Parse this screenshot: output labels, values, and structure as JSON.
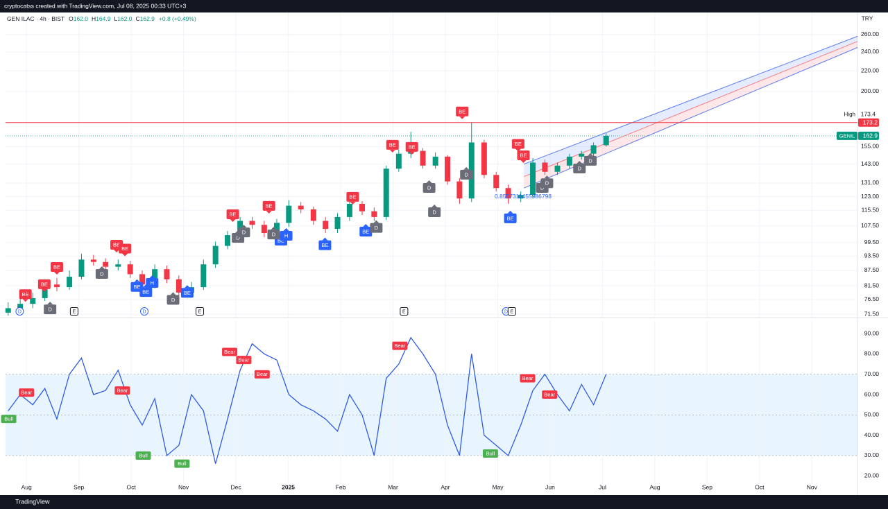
{
  "page": {
    "watermark": "cryptocatss created with TradingView.com, Jul 08, 2025 00:33 UTC+3",
    "brand": "TradingView"
  },
  "header": {
    "symbol": "GEN ILAC · 4h · BIST",
    "ohlc": [
      {
        "key": "O",
        "value": "162.0"
      },
      {
        "key": "H",
        "value": "164.9"
      },
      {
        "key": "L",
        "value": "162.0"
      },
      {
        "key": "C",
        "value": "162.9"
      }
    ],
    "change": "+0.8 (+0.49%)"
  },
  "chart_data": [
    {
      "type": "candlestick",
      "currency": "TRY",
      "log_scale": true,
      "grid": true,
      "x": [
        -0.35,
        -0.12,
        0.12,
        0.35,
        0.58,
        0.82,
        1.05,
        1.28,
        1.51,
        1.75,
        1.98,
        2.21,
        2.45,
        2.68,
        2.91,
        3.15,
        3.38,
        3.61,
        3.84,
        4.08,
        4.31,
        4.54,
        4.78,
        5.01,
        5.24,
        5.48,
        5.71,
        5.94,
        6.17,
        6.41,
        6.64,
        6.87,
        7.11,
        7.34,
        7.57,
        7.81,
        8.04,
        8.27,
        8.5,
        8.74,
        8.97,
        9.2,
        9.44,
        9.67,
        9.9,
        10.14,
        10.37,
        10.6,
        10.83,
        11.07
      ],
      "open": [
        72,
        73.5,
        75,
        77,
        82,
        81,
        85,
        92,
        91,
        89,
        90,
        86,
        82,
        88,
        84,
        79,
        81,
        90,
        98,
        103,
        110,
        108,
        104,
        109,
        118,
        116,
        110,
        106,
        112,
        119,
        115,
        112,
        140,
        150,
        152,
        142,
        148,
        132,
        122,
        158,
        136,
        128,
        122,
        124,
        144,
        138,
        142,
        148,
        150,
        156
      ],
      "high": [
        75.5,
        77,
        79,
        84,
        84.5,
        87.5,
        94.5,
        94,
        92.5,
        92,
        91.5,
        87.5,
        90,
        89.5,
        85.5,
        83,
        92,
        100,
        105,
        112,
        112,
        110,
        111,
        121,
        120,
        117.5,
        112,
        114,
        121,
        120.5,
        117,
        142,
        153,
        166,
        154,
        151,
        149,
        134,
        173.4,
        160,
        138,
        130,
        126,
        147,
        146,
        144,
        150,
        152,
        158,
        164.9
      ],
      "low": [
        71,
        72,
        73.5,
        76,
        79.5,
        80,
        84,
        89.5,
        87.5,
        87.5,
        84.5,
        80.5,
        80.5,
        82.5,
        77.5,
        77.5,
        80,
        88.5,
        96.5,
        101.5,
        106,
        102,
        102,
        107,
        114,
        108,
        104,
        104,
        110,
        113,
        110,
        110.5,
        138,
        147,
        140,
        140,
        130,
        119,
        120,
        134,
        126,
        119,
        120,
        122,
        136,
        136,
        140,
        146,
        148,
        155
      ],
      "close": [
        73.5,
        75,
        77,
        82,
        81,
        85,
        92,
        91,
        89,
        90,
        86,
        82,
        88,
        84,
        79,
        81,
        90,
        98,
        103,
        110,
        108,
        104,
        109,
        118,
        116,
        110,
        106,
        112,
        119,
        115,
        112,
        140,
        150,
        152,
        142,
        148,
        132,
        122,
        158,
        136,
        128,
        122,
        124,
        144,
        138,
        142,
        148,
        150,
        156,
        162.9
      ],
      "up_color": "#089981",
      "down_color": "#f23645",
      "xlim": [
        -0.4,
        15.87
      ],
      "ylim": [
        70.6,
        288
      ],
      "yticks": [
        {
          "value": 71.5,
          "label": "71.50"
        },
        {
          "value": 76.5,
          "label": "76.50"
        },
        {
          "value": 81.5,
          "label": "81.50"
        },
        {
          "value": 87.5,
          "label": "87.50"
        },
        {
          "value": 93.5,
          "label": "93.50"
        },
        {
          "value": 99.5,
          "label": "99.50"
        },
        {
          "value": 107.5,
          "label": "107.50"
        },
        {
          "value": 115.5,
          "label": "115.50"
        },
        {
          "value": 123,
          "label": "123.00"
        },
        {
          "value": 131,
          "label": "131.00"
        },
        {
          "value": 143,
          "label": "143.00"
        },
        {
          "value": 155,
          "label": "155.00"
        },
        {
          "value": 200,
          "label": "200.00"
        },
        {
          "value": 220,
          "label": "220.00"
        },
        {
          "value": 240,
          "label": "240.00"
        },
        {
          "value": 260,
          "label": "260.00"
        }
      ],
      "hline": {
        "value": 173.2,
        "color": "#f23645"
      },
      "high_marker": {
        "label": "High",
        "value": 173.4
      },
      "last": {
        "name": "GENIL",
        "value": 162.9,
        "color": "#089981"
      },
      "channel": {
        "x": [
          9.5,
          15.87
        ],
        "upper": [
          143,
          258
        ],
        "middle": [
          135,
          252
        ],
        "lower": [
          128,
          245
        ]
      },
      "annotation": {
        "text": "0.8557311455986798",
        "x": 8.94,
        "y": 123
      },
      "markers": [
        {
          "label": "BE",
          "kind": "sell",
          "x": -0.02,
          "y": 78.4
        },
        {
          "label": "BE",
          "kind": "sell",
          "x": 0.34,
          "y": 82.1
        },
        {
          "label": "BE",
          "kind": "sell",
          "x": 0.58,
          "y": 88.9
        },
        {
          "label": "BE",
          "kind": "sell",
          "x": 1.72,
          "y": 98.5
        },
        {
          "label": "BE",
          "kind": "sell",
          "x": 1.88,
          "y": 96.8
        },
        {
          "label": "BE",
          "kind": "sell",
          "x": 3.94,
          "y": 113.4
        },
        {
          "label": "BE",
          "kind": "sell",
          "x": 4.63,
          "y": 117.9
        },
        {
          "label": "BE",
          "kind": "sell",
          "x": 6.23,
          "y": 122.9
        },
        {
          "label": "BE",
          "kind": "sell",
          "x": 6.99,
          "y": 156.3
        },
        {
          "label": "BE",
          "kind": "sell",
          "x": 7.36,
          "y": 154.8
        },
        {
          "label": "BE",
          "kind": "sell",
          "x": 8.32,
          "y": 182.3
        },
        {
          "label": "BE",
          "kind": "sell",
          "x": 9.39,
          "y": 157
        },
        {
          "label": "BE",
          "kind": "sell",
          "x": 9.49,
          "y": 148.9
        },
        {
          "label": "BE",
          "kind": "buy",
          "x": 2.11,
          "y": 81.1
        },
        {
          "label": "BE",
          "kind": "buy",
          "x": 2.28,
          "y": 79.2
        },
        {
          "label": "BE",
          "kind": "buy",
          "x": 3.07,
          "y": 78.9
        },
        {
          "label": "BE",
          "kind": "buy",
          "x": 4.86,
          "y": 100.4
        },
        {
          "label": "BE",
          "kind": "buy",
          "x": 5.7,
          "y": 98.3
        },
        {
          "label": "BE",
          "kind": "buy",
          "x": 6.48,
          "y": 104.7
        },
        {
          "label": "BE",
          "kind": "buy",
          "x": 9.24,
          "y": 111.3
        },
        {
          "label": "H",
          "kind": "buy",
          "x": 2.4,
          "y": 82.6
        },
        {
          "label": "H",
          "kind": "buy",
          "x": 4.96,
          "y": 102.7
        },
        {
          "label": "D",
          "kind": "dot",
          "x": 0.45,
          "y": 73.1
        },
        {
          "label": "D",
          "kind": "dot",
          "x": 1.44,
          "y": 86.1
        },
        {
          "label": "D",
          "kind": "dot",
          "x": 2.8,
          "y": 76.4
        },
        {
          "label": "D",
          "kind": "dot",
          "x": 4.04,
          "y": 101.7
        },
        {
          "label": "D",
          "kind": "dot",
          "x": 4.15,
          "y": 104.3
        },
        {
          "label": "D",
          "kind": "dot",
          "x": 4.72,
          "y": 103.3
        },
        {
          "label": "D",
          "kind": "dot",
          "x": 6.68,
          "y": 106.5
        },
        {
          "label": "D",
          "kind": "dot",
          "x": 7.69,
          "y": 128.1
        },
        {
          "label": "D",
          "kind": "dot",
          "x": 7.79,
          "y": 114.5
        },
        {
          "label": "D",
          "kind": "dot",
          "x": 8.4,
          "y": 136.2
        },
        {
          "label": "D",
          "kind": "dot",
          "x": 9.85,
          "y": 128.1
        },
        {
          "label": "D",
          "kind": "dot",
          "x": 9.94,
          "y": 130.9
        },
        {
          "label": "D",
          "kind": "dot",
          "x": 10.56,
          "y": 140.1
        },
        {
          "label": "D",
          "kind": "dot",
          "x": 10.77,
          "y": 145.2
        }
      ],
      "events": [
        {
          "label": "D",
          "x": -0.13
        },
        {
          "label": "E",
          "x": 0.91
        },
        {
          "label": "D",
          "x": 2.25
        },
        {
          "label": "E",
          "x": 3.31
        },
        {
          "label": "E",
          "x": 7.21
        },
        {
          "label": "D",
          "x": 9.16
        },
        {
          "label": "E",
          "x": 9.27
        }
      ]
    },
    {
      "type": "line",
      "color": "#2f5be0",
      "grid": true,
      "x": [
        -0.35,
        -0.12,
        0.12,
        0.35,
        0.58,
        0.82,
        1.05,
        1.28,
        1.51,
        1.75,
        1.98,
        2.21,
        2.45,
        2.68,
        2.91,
        3.15,
        3.38,
        3.61,
        3.84,
        4.08,
        4.31,
        4.54,
        4.78,
        5.01,
        5.24,
        5.48,
        5.71,
        5.94,
        6.17,
        6.41,
        6.64,
        6.87,
        7.11,
        7.34,
        7.57,
        7.81,
        8.04,
        8.27,
        8.5,
        8.74,
        8.97,
        9.2,
        9.44,
        9.67,
        9.9,
        10.14,
        10.37,
        10.6,
        10.83,
        11.07
      ],
      "values": [
        52,
        60,
        55,
        63,
        48,
        70,
        78,
        60,
        62,
        72,
        55,
        45,
        58,
        30,
        35,
        60,
        52,
        26,
        48,
        72,
        85,
        80,
        77,
        60,
        55,
        52,
        48,
        42,
        60,
        50,
        30,
        68,
        75,
        88,
        80,
        70,
        45,
        30,
        80,
        40,
        35,
        30,
        45,
        62,
        70,
        60,
        52,
        65,
        55,
        70
      ],
      "band": [
        30,
        70
      ],
      "midline": 50,
      "xlim": [
        -0.4,
        15.87
      ],
      "ylim": [
        16,
        96.5
      ],
      "yticks": [
        {
          "value": 20,
          "label": "20.00"
        },
        {
          "value": 30,
          "label": "30.00"
        },
        {
          "value": 40,
          "label": "40.00"
        },
        {
          "value": 50,
          "label": "50.00"
        },
        {
          "value": 60,
          "label": "60.00"
        },
        {
          "value": 70,
          "label": "70.00"
        },
        {
          "value": 80,
          "label": "80.00"
        },
        {
          "value": 90,
          "label": "90.00"
        }
      ],
      "xticks": [
        {
          "value": 0,
          "label": "Aug"
        },
        {
          "value": 1,
          "label": "Sep"
        },
        {
          "value": 2,
          "label": "Oct"
        },
        {
          "value": 3,
          "label": "Nov"
        },
        {
          "value": 4,
          "label": "Dec"
        },
        {
          "value": 5,
          "label": "2025"
        },
        {
          "value": 6,
          "label": "Feb"
        },
        {
          "value": 7,
          "label": "Mar"
        },
        {
          "value": 8,
          "label": "Apr"
        },
        {
          "value": 9,
          "label": "May"
        },
        {
          "value": 10,
          "label": "Jun"
        },
        {
          "value": 11,
          "label": "Jul"
        },
        {
          "value": 12,
          "label": "Aug"
        },
        {
          "value": 13,
          "label": "Sep"
        },
        {
          "value": 14,
          "label": "Oct"
        },
        {
          "value": 15,
          "label": "Nov"
        }
      ],
      "signals": [
        {
          "label": "Bull",
          "x": -0.34,
          "y": 48,
          "color": "#4caf50"
        },
        {
          "label": "Bear",
          "x": 0.0,
          "y": 61,
          "color": "#f23645"
        },
        {
          "label": "Bear",
          "x": 1.83,
          "y": 62,
          "color": "#f23645"
        },
        {
          "label": "Bull",
          "x": 2.23,
          "y": 30,
          "color": "#4caf50"
        },
        {
          "label": "Bull",
          "x": 2.97,
          "y": 26,
          "color": "#4caf50"
        },
        {
          "label": "Bear",
          "x": 3.88,
          "y": 81,
          "color": "#f23645"
        },
        {
          "label": "Bear",
          "x": 4.15,
          "y": 77,
          "color": "#f23645"
        },
        {
          "label": "Bear",
          "x": 4.5,
          "y": 70,
          "color": "#f23645"
        },
        {
          "label": "Bear",
          "x": 7.13,
          "y": 84,
          "color": "#f23645"
        },
        {
          "label": "Bull",
          "x": 8.86,
          "y": 31,
          "color": "#4caf50"
        },
        {
          "label": "Bear",
          "x": 9.57,
          "y": 68,
          "color": "#f23645"
        },
        {
          "label": "Bear",
          "x": 9.99,
          "y": 60,
          "color": "#f23645"
        }
      ]
    }
  ]
}
